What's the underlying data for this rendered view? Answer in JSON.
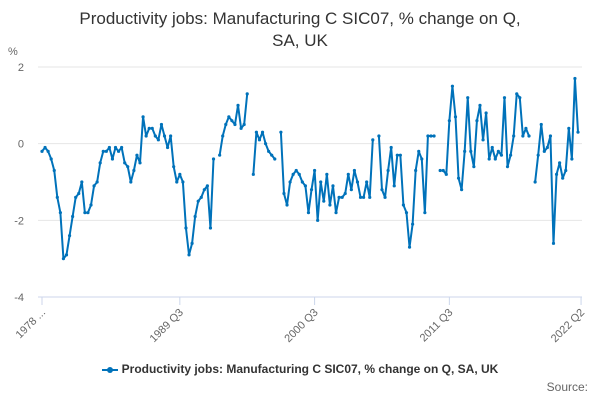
{
  "title_line1": "Productivity jobs: Manufacturing C SIC07, % change on Q,",
  "title_line2": "SA, UK",
  "source": "Source:",
  "colors": {
    "series": "#0072ba",
    "grid": "#e6e6e6",
    "axis": "#ccd6eb",
    "text": "#666666"
  },
  "chart_data": {
    "type": "line",
    "unit": "%",
    "ylim": [
      -4,
      2
    ],
    "y_ticks": [
      {
        "value": 2,
        "label": "2"
      },
      {
        "value": 0,
        "label": "0"
      },
      {
        "value": -2,
        "label": "-2"
      },
      {
        "value": -4,
        "label": "-4"
      }
    ],
    "x_ticks": [
      {
        "index": 0,
        "label": "1978 ..."
      },
      {
        "index": 45,
        "label": "1989 Q3"
      },
      {
        "index": 89,
        "label": "2000 Q3"
      },
      {
        "index": 133,
        "label": "2011 Q3"
      },
      {
        "index": 176,
        "label": "2022 Q2"
      }
    ],
    "grid": true,
    "legend_position": "bottom",
    "series": [
      {
        "name": "Productivity jobs: Manufacturing C SIC07, % change on Q, SA, UK",
        "values": [
          -0.2,
          -0.1,
          -0.2,
          -0.4,
          -0.7,
          -1.4,
          -1.8,
          -3.0,
          -2.9,
          -2.4,
          -1.9,
          -1.4,
          -1.3,
          -1.0,
          -1.8,
          -1.8,
          -1.6,
          -1.1,
          -1.0,
          -0.5,
          -0.2,
          -0.2,
          -0.1,
          -0.4,
          -0.1,
          -0.2,
          -0.1,
          -0.5,
          -0.6,
          -1.0,
          -0.7,
          -0.3,
          -0.5,
          0.7,
          0.2,
          0.4,
          0.4,
          0.2,
          0.1,
          0.5,
          0.2,
          -0.1,
          0.2,
          -0.6,
          -1.0,
          -0.8,
          -1.0,
          -2.2,
          -2.9,
          -2.6,
          -1.9,
          -1.5,
          -1.4,
          -1.2,
          -1.1,
          -2.2,
          -0.4,
          null,
          -0.3,
          0.2,
          0.5,
          0.7,
          0.6,
          0.5,
          1.0,
          0.4,
          0.5,
          1.3,
          null,
          -0.8,
          0.3,
          0.1,
          0.3,
          0.0,
          -0.2,
          -0.3,
          -0.4,
          null,
          0.3,
          -1.3,
          -1.6,
          -1.0,
          -0.8,
          -0.7,
          -0.8,
          -1.0,
          -1.1,
          -1.8,
          -1.2,
          -0.7,
          -2.0,
          -1.0,
          -1.5,
          -0.8,
          -1.6,
          -1.1,
          -1.8,
          -1.4,
          -1.4,
          -1.3,
          -0.8,
          -1.2,
          -0.7,
          -1.0,
          -1.4,
          -1.4,
          -1.0,
          -1.4,
          0.1,
          null,
          0.2,
          -1.2,
          -1.4,
          -0.7,
          -0.1,
          -1.1,
          -0.3,
          -0.3,
          -1.6,
          -1.8,
          -2.7,
          -2.1,
          -0.7,
          -0.2,
          -0.4,
          -1.8,
          0.2,
          0.2,
          0.2,
          null,
          -0.7,
          -0.7,
          -0.8,
          0.6,
          1.5,
          0.7,
          -0.9,
          -1.2,
          -0.2,
          1.2,
          -0.2,
          -0.6,
          0.6,
          1.0,
          0.1,
          0.8,
          -0.4,
          -0.1,
          -0.4,
          -0.2,
          -0.3,
          1.2,
          -0.6,
          -0.3,
          0.2,
          1.3,
          1.2,
          0.2,
          0.4,
          0.2,
          null,
          -1.0,
          -0.3,
          0.5,
          -0.2,
          -0.1,
          0.2,
          -2.6,
          -0.8,
          -0.5,
          -0.9,
          -0.7,
          0.4,
          -0.4,
          1.7,
          0.3
        ]
      }
    ]
  }
}
